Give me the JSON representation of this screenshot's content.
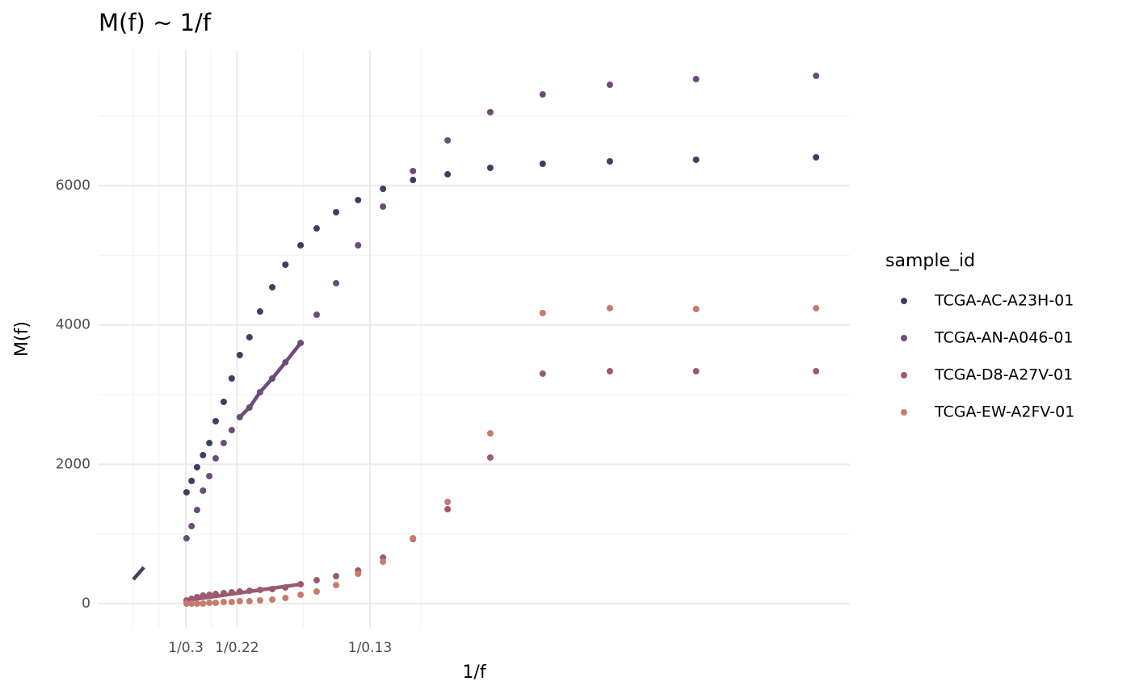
{
  "chart_data": {
    "type": "scatter",
    "title": "M(f) ~ 1/f",
    "x_label": "1/f",
    "y_label": "M(f)",
    "legend_title": "sample_id",
    "legend_position": "right",
    "xlim": [
      1.268,
      19.05
    ],
    "ylim": [
      -347,
      7946
    ],
    "xticks": [
      {
        "value": 3.333,
        "label": "1/0.3"
      },
      {
        "value": 4.545,
        "label": "1/0.22"
      },
      {
        "value": 7.692,
        "label": "1/0.13"
      }
    ],
    "x_minor_ticks": [
      2.09,
      2.7,
      3.93,
      6.11,
      8.9
    ],
    "yticks": [
      0,
      2000,
      4000,
      6000
    ],
    "y_minor_ticks": [
      1000,
      3000,
      5000,
      7000
    ],
    "grid": true,
    "x": [
      3.35,
      3.47,
      3.6,
      3.74,
      3.89,
      4.04,
      4.23,
      4.42,
      4.61,
      4.84,
      5.09,
      5.38,
      5.69,
      6.05,
      6.43,
      6.89,
      7.41,
      8.0,
      8.71,
      9.53,
      10.54,
      11.78,
      13.37,
      15.41,
      18.25
    ],
    "series": [
      {
        "name": "TCGA-AC-A23H-01",
        "color": "#3b3f62",
        "values": [
          1598,
          1761,
          1958,
          2131,
          2305,
          2618,
          2896,
          3232,
          3568,
          3823,
          4193,
          4541,
          4865,
          5143,
          5386,
          5618,
          5792,
          5954,
          6081,
          6162,
          6255,
          6313,
          6348,
          6371,
          6406
        ],
        "fit": {
          "x": [
            2.09,
            2.34
          ],
          "y": [
            347,
            521
          ]
        }
      },
      {
        "name": "TCGA-AN-A046-01",
        "color": "#6b4c7a",
        "values": [
          938,
          1112,
          1344,
          1622,
          1830,
          2085,
          2305,
          2490,
          2676,
          2815,
          3035,
          3232,
          3463,
          3741,
          4147,
          4599,
          5143,
          5699,
          6209,
          6649,
          7054,
          7309,
          7448,
          7529,
          7576
        ],
        "fit": {
          "x": [
            4.61,
            4.84,
            5.09,
            5.38,
            5.69,
            6.05
          ],
          "y": [
            2676,
            2815,
            3035,
            3232,
            3463,
            3741
          ]
        }
      },
      {
        "name": "TCGA-D8-A27V-01",
        "color": "#9a5a72",
        "values": [
          46,
          69,
          93,
          116,
          127,
          139,
          151,
          162,
          174,
          185,
          197,
          209,
          232,
          278,
          336,
          394,
          475,
          660,
          927,
          1355,
          2097,
          3301,
          3336,
          3336,
          3336
        ],
        "fit": {
          "x": [
            3.35,
            6.05
          ],
          "y": [
            46,
            278
          ]
        }
      },
      {
        "name": "TCGA-EW-A2FV-01",
        "color": "#c97a6a",
        "values": [
          0,
          0,
          0,
          0,
          12,
          12,
          23,
          23,
          35,
          35,
          46,
          58,
          81,
          127,
          174,
          266,
          429,
          602,
          938,
          1460,
          2444,
          4170,
          4240,
          4228,
          4240
        ]
      }
    ]
  }
}
